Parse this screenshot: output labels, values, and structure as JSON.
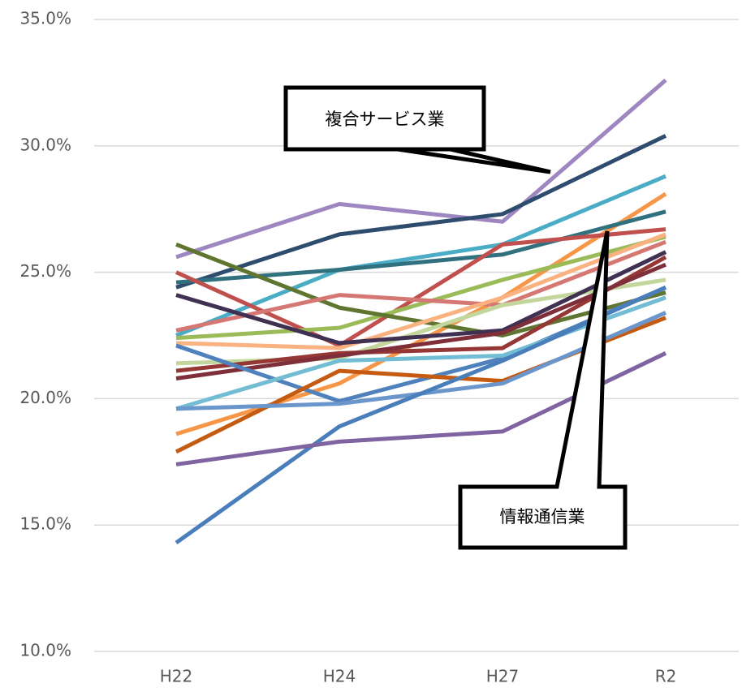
{
  "chart_data": {
    "type": "line",
    "categories": [
      "H22",
      "H24",
      "H27",
      "R2"
    ],
    "ylim": [
      10,
      35
    ],
    "yticks": [
      {
        "value": 10,
        "label": "10.0%"
      },
      {
        "value": 15,
        "label": "15.0%"
      },
      {
        "value": 20,
        "label": "20.0%"
      },
      {
        "value": 25,
        "label": "25.0%"
      },
      {
        "value": 30,
        "label": "30.0%"
      },
      {
        "value": 35,
        "label": "35.0%"
      }
    ],
    "grid": true,
    "annotations": [
      "複合サービス業",
      "情報通信業"
    ],
    "series": [
      {
        "color": "#9e86c0",
        "values": [
          25.6,
          27.7,
          27.0,
          32.6
        ]
      },
      {
        "color": "#2e4d6e",
        "values": [
          24.4,
          26.5,
          27.3,
          30.4
        ]
      },
      {
        "color": "#4bacc6",
        "values": [
          22.5,
          25.1,
          26.1,
          28.8
        ]
      },
      {
        "color": "#f79646",
        "values": [
          18.6,
          20.6,
          24.0,
          28.1
        ]
      },
      {
        "color": "#31707f",
        "values": [
          24.6,
          25.1,
          25.7,
          27.4
        ]
      },
      {
        "color": "#c0504d",
        "values": [
          25.0,
          22.1,
          26.1,
          26.7
        ]
      },
      {
        "color": "#9bbb59",
        "values": [
          22.4,
          22.8,
          24.7,
          26.4
        ]
      },
      {
        "color": "#5f7530",
        "values": [
          26.1,
          23.6,
          22.5,
          24.2
        ]
      },
      {
        "color": "#d57773",
        "values": [
          22.7,
          24.1,
          23.7,
          26.2
        ]
      },
      {
        "color": "#fab280",
        "values": [
          22.2,
          22.0,
          24.0,
          26.5
        ]
      },
      {
        "color": "#c3d69b",
        "values": [
          21.4,
          21.6,
          23.7,
          24.7
        ]
      },
      {
        "color": "#403152",
        "values": [
          24.1,
          22.2,
          22.7,
          25.8
        ]
      },
      {
        "color": "#953735",
        "values": [
          21.1,
          21.8,
          22.0,
          25.6
        ]
      },
      {
        "color": "#7f2f3a",
        "values": [
          20.8,
          21.7,
          22.6,
          25.3
        ]
      },
      {
        "color": "#4f81bd",
        "values": [
          22.1,
          19.9,
          21.6,
          24.4
        ]
      },
      {
        "color": "#72bcd4",
        "values": [
          19.6,
          21.5,
          21.7,
          24.0
        ]
      },
      {
        "color": "#c55a11",
        "values": [
          17.9,
          21.1,
          20.7,
          23.2
        ]
      },
      {
        "color": "#6b96cc",
        "values": [
          19.6,
          19.8,
          20.6,
          23.4
        ]
      },
      {
        "color": "#4a7ebb",
        "values": [
          14.3,
          18.9,
          21.5,
          24.4
        ]
      },
      {
        "color": "#8064a2",
        "values": [
          17.4,
          18.3,
          18.7,
          21.8
        ]
      }
    ]
  }
}
